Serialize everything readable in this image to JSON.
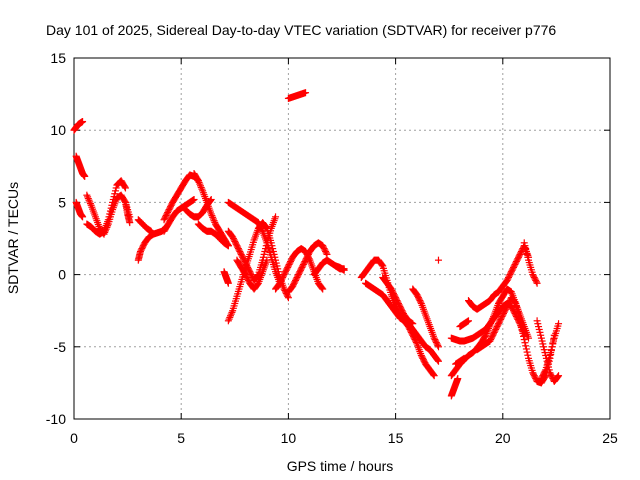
{
  "chart_data": {
    "type": "scatter",
    "title": "Day 101 of 2025, Sidereal Day-to-day VTEC variation (SDTVAR) for receiver p776",
    "xlabel": "GPS time / hours",
    "ylabel": "SDTVAR / TECUs",
    "xlim": [
      0,
      25
    ],
    "ylim": [
      -10,
      15
    ],
    "xticks": [
      0,
      5,
      10,
      15,
      20,
      25
    ],
    "yticks": [
      -10,
      -5,
      0,
      5,
      10,
      15
    ],
    "xtick_labels": [
      "0",
      "5",
      "10",
      "15",
      "20",
      "25"
    ],
    "ytick_labels": [
      "-10",
      "-5",
      "0",
      "5",
      "10",
      "15"
    ],
    "grid": true,
    "marker": "plus",
    "color": "#ff0000",
    "series": [
      {
        "name": "s1",
        "x": [
          0.0,
          0.1,
          0.2,
          0.3,
          0.4
        ],
        "y": [
          10.0,
          10.2,
          10.4,
          10.5,
          10.6
        ]
      },
      {
        "name": "s2",
        "x": [
          0.1,
          0.2,
          0.3,
          0.4,
          0.5
        ],
        "y": [
          8.2,
          7.8,
          7.4,
          7.0,
          6.8
        ]
      },
      {
        "name": "s3",
        "x": [
          0.1,
          0.2,
          0.3,
          0.4
        ],
        "y": [
          5.0,
          4.6,
          4.2,
          4.0
        ]
      },
      {
        "name": "s4",
        "x": [
          0.6,
          0.8,
          1.0,
          1.2,
          1.4,
          1.6,
          1.8,
          2.0,
          2.2,
          2.4,
          2.6
        ],
        "y": [
          5.5,
          4.8,
          4.0,
          3.2,
          2.8,
          3.5,
          4.5,
          5.3,
          5.5,
          5.0,
          4.0
        ]
      },
      {
        "name": "s5",
        "x": [
          0.6,
          0.8,
          1.0,
          1.2,
          1.4,
          1.6,
          1.8,
          2.0,
          2.2,
          2.4
        ],
        "y": [
          3.5,
          3.3,
          3.0,
          2.8,
          3.0,
          3.8,
          5.0,
          6.2,
          6.5,
          6.0
        ]
      },
      {
        "name": "s6",
        "x": [
          2.4,
          2.5,
          2.6
        ],
        "y": [
          5.0,
          4.2,
          3.6
        ]
      },
      {
        "name": "s7",
        "x": [
          3.0,
          3.1,
          3.3,
          3.5,
          3.7,
          3.9,
          4.1,
          4.3
        ],
        "y": [
          1.0,
          1.6,
          2.2,
          2.6,
          2.8,
          2.9,
          3.0,
          3.3
        ]
      },
      {
        "name": "s8",
        "x": [
          3.0,
          3.2,
          3.4,
          3.6
        ],
        "y": [
          3.8,
          3.5,
          3.2,
          3.0
        ]
      },
      {
        "name": "s9",
        "x": [
          4.2,
          4.4,
          4.6,
          4.8,
          5.0,
          5.2,
          5.4,
          5.6,
          5.8
        ],
        "y": [
          3.8,
          4.4,
          5.0,
          5.5,
          6.0,
          6.5,
          6.9,
          6.8,
          6.5
        ]
      },
      {
        "name": "s10",
        "x": [
          4.2,
          4.4,
          4.6,
          4.8,
          5.0,
          5.2,
          5.4,
          5.6
        ],
        "y": [
          3.0,
          3.5,
          4.0,
          4.4,
          4.6,
          4.8,
          5.0,
          5.2
        ]
      },
      {
        "name": "s11",
        "x": [
          5.2,
          5.4,
          5.6,
          5.8,
          6.0,
          6.2,
          6.4
        ],
        "y": [
          4.5,
          4.2,
          4.0,
          4.0,
          4.3,
          4.8,
          5.2
        ]
      },
      {
        "name": "s12",
        "x": [
          5.6,
          5.8,
          6.0,
          6.2,
          6.4,
          6.6,
          6.8,
          7.0,
          7.2
        ],
        "y": [
          7.0,
          6.5,
          5.8,
          5.0,
          4.2,
          3.5,
          3.0,
          2.5,
          2.0
        ]
      },
      {
        "name": "s13",
        "x": [
          5.8,
          6.0,
          6.2,
          6.4,
          6.6,
          6.8,
          7.0,
          7.2
        ],
        "y": [
          3.5,
          3.2,
          3.0,
          3.0,
          2.8,
          2.5,
          2.2,
          2.0
        ]
      },
      {
        "name": "s14",
        "x": [
          7.2,
          7.4,
          7.6,
          7.8,
          8.0,
          8.2,
          8.4,
          8.6,
          8.8,
          9.0,
          9.2,
          9.4,
          9.6,
          9.8,
          10.0
        ],
        "y": [
          -3.2,
          -2.5,
          -1.5,
          -0.5,
          0.5,
          1.4,
          2.4,
          3.2,
          3.6,
          3.2,
          2.2,
          1.0,
          -0.2,
          -1.0,
          -1.6
        ]
      },
      {
        "name": "s15",
        "x": [
          7.2,
          7.4,
          7.6,
          7.8,
          8.0,
          8.2,
          8.4,
          8.6,
          8.8,
          9.0,
          9.2,
          9.4,
          9.6
        ],
        "y": [
          5.0,
          4.8,
          4.6,
          4.4,
          4.2,
          4.0,
          3.8,
          3.6,
          3.0,
          2.2,
          1.2,
          0.2,
          -0.6
        ]
      },
      {
        "name": "s16",
        "x": [
          7.2,
          7.4,
          7.6,
          7.8,
          8.0,
          8.2,
          8.4,
          8.6,
          8.8,
          9.0,
          9.2,
          9.4
        ],
        "y": [
          3.0,
          2.6,
          2.0,
          1.4,
          0.8,
          0.2,
          -0.4,
          0.0,
          1.0,
          2.2,
          3.2,
          4.0
        ]
      },
      {
        "name": "s17",
        "x": [
          7.0,
          7.1,
          7.2
        ],
        "y": [
          0.2,
          -0.2,
          -0.6
        ]
      },
      {
        "name": "s18",
        "x": [
          7.6,
          7.8,
          8.0,
          8.2,
          8.4,
          8.6,
          8.8,
          9.0
        ],
        "y": [
          1.0,
          0.5,
          0.0,
          -0.6,
          -1.0,
          -0.6,
          0.2,
          1.0
        ]
      },
      {
        "name": "s19",
        "x": [
          9.4,
          9.6,
          9.8,
          10.0,
          10.2,
          10.4,
          10.6,
          10.8,
          11.0,
          11.2,
          11.4,
          11.6
        ],
        "y": [
          -1.0,
          -0.6,
          0.0,
          0.6,
          1.2,
          1.6,
          1.8,
          1.6,
          1.0,
          0.2,
          -0.6,
          -1.0
        ]
      },
      {
        "name": "s20",
        "x": [
          10.0,
          10.2,
          10.4,
          10.6,
          10.8,
          11.0,
          11.2,
          11.4,
          11.6,
          11.8
        ],
        "y": [
          -1.2,
          -0.8,
          -0.2,
          0.4,
          1.0,
          1.6,
          2.0,
          2.2,
          2.0,
          1.4
        ]
      },
      {
        "name": "s21",
        "x": [
          11.2,
          11.4,
          11.6,
          11.8,
          12.0,
          12.2,
          12.4,
          12.6
        ],
        "y": [
          0.0,
          0.4,
          0.8,
          1.0,
          0.8,
          0.6,
          0.4,
          0.4
        ]
      },
      {
        "name": "s22",
        "x": [
          10.0,
          10.2,
          10.4,
          10.6,
          10.8
        ],
        "y": [
          12.2,
          12.3,
          12.4,
          12.5,
          12.6
        ]
      },
      {
        "name": "s23",
        "x": [
          12.2,
          12.4,
          12.6
        ],
        "y": [
          0.6,
          0.5,
          0.3
        ]
      },
      {
        "name": "s24",
        "x": [
          13.4,
          13.6,
          13.8,
          14.0,
          14.2,
          14.4,
          14.6,
          14.8,
          15.0,
          15.2,
          15.4,
          15.6,
          15.8,
          16.0,
          16.2,
          16.4,
          16.6,
          16.8
        ],
        "y": [
          -0.2,
          0.2,
          0.6,
          1.0,
          1.0,
          0.6,
          -0.4,
          -1.4,
          -2.2,
          -2.8,
          -3.2,
          -3.6,
          -4.2,
          -4.8,
          -5.6,
          -6.2,
          -6.6,
          -7.0
        ]
      },
      {
        "name": "s25",
        "x": [
          13.6,
          13.8,
          14.0,
          14.2,
          14.4,
          14.6,
          14.8,
          15.0,
          15.2,
          15.4,
          15.6,
          15.8,
          16.0,
          16.2,
          16.4,
          16.6,
          16.8,
          17.0
        ],
        "y": [
          -0.6,
          -0.8,
          -1.0,
          -1.2,
          -1.4,
          -1.8,
          -2.2,
          -2.6,
          -3.0,
          -3.2,
          -3.4,
          -3.8,
          -4.2,
          -4.6,
          -5.0,
          -5.2,
          -5.6,
          -6.0
        ]
      },
      {
        "name": "s26",
        "x": [
          14.4,
          14.6,
          14.8,
          15.0,
          15.2,
          15.4,
          15.6,
          15.8
        ],
        "y": [
          -0.2,
          -0.6,
          -1.0,
          -1.6,
          -2.2,
          -2.8,
          -3.2,
          -3.4
        ]
      },
      {
        "name": "s27",
        "x": [
          15.8,
          16.0,
          16.2,
          16.4,
          16.6,
          16.8,
          17.0
        ],
        "y": [
          -1.0,
          -1.4,
          -2.0,
          -2.8,
          -3.6,
          -4.4,
          -5.0
        ]
      },
      {
        "name": "s28",
        "x": [
          17.0
        ],
        "y": [
          1.0
        ]
      },
      {
        "name": "s29",
        "x": [
          17.6,
          17.7,
          17.8,
          17.9
        ],
        "y": [
          -8.4,
          -8.0,
          -7.6,
          -7.2
        ]
      },
      {
        "name": "s30",
        "x": [
          17.6,
          17.8,
          18.0,
          18.2,
          18.4,
          18.6,
          18.8,
          19.0,
          19.2,
          19.4,
          19.6,
          19.8,
          20.0,
          20.2,
          20.4,
          20.6,
          20.8,
          21.0,
          21.2,
          21.4,
          21.6,
          21.8,
          22.0,
          22.2,
          22.4
        ],
        "y": [
          -7.0,
          -6.6,
          -6.2,
          -5.9,
          -5.6,
          -5.4,
          -5.1,
          -4.7,
          -4.2,
          -3.5,
          -2.8,
          -2.0,
          -1.5,
          -1.0,
          -1.2,
          -2.0,
          -3.2,
          -4.5,
          -5.8,
          -6.8,
          -7.4,
          -7.5,
          -7.0,
          -5.8,
          -4.2
        ]
      },
      {
        "name": "s31",
        "x": [
          17.6,
          17.8,
          18.0,
          18.2,
          18.4,
          18.6,
          18.8,
          19.0,
          19.2,
          19.4,
          19.6,
          19.8,
          20.0,
          20.2,
          20.4,
          20.6,
          20.8,
          21.0
        ],
        "y": [
          -4.4,
          -4.5,
          -4.6,
          -4.6,
          -4.5,
          -4.4,
          -4.2,
          -4.0,
          -3.8,
          -3.4,
          -3.0,
          -2.6,
          -2.2,
          -2.0,
          -2.2,
          -2.8,
          -3.4,
          -4.2
        ]
      },
      {
        "name": "s32",
        "x": [
          18.8,
          19.0,
          19.2,
          19.4,
          19.6,
          19.8,
          20.0,
          20.2,
          20.4,
          20.6,
          20.8,
          21.0,
          21.2
        ],
        "y": [
          -5.2,
          -5.0,
          -4.8,
          -4.6,
          -4.0,
          -3.4,
          -2.8,
          -2.2,
          -1.6,
          -2.0,
          -2.8,
          -3.6,
          -4.4
        ]
      },
      {
        "name": "s33",
        "x": [
          18.4,
          18.6,
          18.8,
          19.0,
          19.2,
          19.4,
          19.6,
          19.8,
          20.0,
          20.2,
          20.4,
          20.6,
          20.8,
          21.0,
          21.2
        ],
        "y": [
          -1.8,
          -2.2,
          -2.4,
          -2.2,
          -2.0,
          -1.8,
          -1.4,
          -1.2,
          -0.8,
          -0.4,
          0.2,
          0.8,
          1.4,
          2.0,
          1.2
        ]
      },
      {
        "name": "s34",
        "x": [
          21.0,
          21.2,
          21.4,
          21.6
        ],
        "y": [
          2.2,
          1.0,
          0.0,
          -0.6
        ]
      },
      {
        "name": "s35",
        "x": [
          21.6,
          21.8,
          22.0,
          22.2,
          22.4,
          22.6
        ],
        "y": [
          -3.2,
          -4.4,
          -5.6,
          -6.8,
          -7.4,
          -7.0
        ]
      },
      {
        "name": "s36",
        "x": [
          21.8,
          22.0,
          22.2,
          22.4,
          22.6
        ],
        "y": [
          -7.2,
          -6.6,
          -5.6,
          -4.4,
          -3.4
        ]
      },
      {
        "name": "s37",
        "x": [
          18.0,
          18.2,
          18.4
        ],
        "y": [
          -3.6,
          -3.4,
          -3.2
        ]
      },
      {
        "name": "s38",
        "x": [
          17.8,
          18.0,
          18.2
        ],
        "y": [
          -6.2,
          -6.0,
          -5.8
        ]
      }
    ]
  }
}
